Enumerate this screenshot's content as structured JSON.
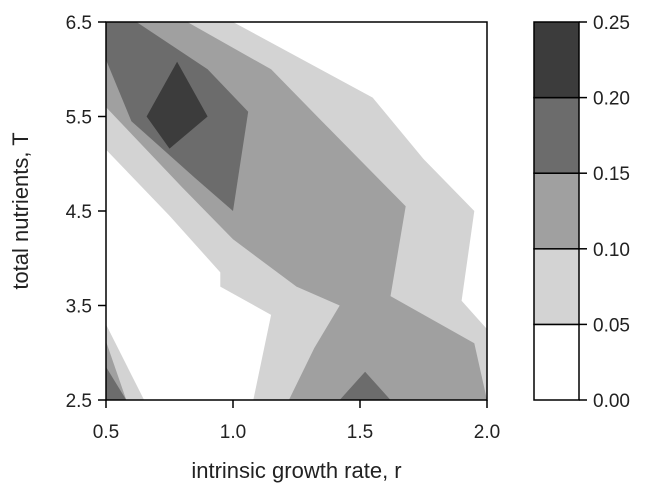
{
  "chart_data": {
    "type": "contour",
    "title": "",
    "xlabel": "intrinsic growth rate, r",
    "ylabel": "total nutrients, T",
    "xlim": [
      0.5,
      2.0
    ],
    "ylim": [
      2.5,
      6.5
    ],
    "x_ticks": [
      "0.5",
      "1.0",
      "1.5",
      "2.0"
    ],
    "y_ticks": [
      "2.5",
      "3.5",
      "4.5",
      "5.5",
      "6.5"
    ],
    "x_tick_values": [
      0.5,
      1.0,
      1.5,
      2.0
    ],
    "y_tick_values": [
      2.5,
      3.5,
      4.5,
      5.5,
      6.5
    ],
    "colorbar": {
      "levels": [
        0.0,
        0.05,
        0.1,
        0.15,
        0.2,
        0.25
      ],
      "tick_labels": [
        "0.00",
        "0.05",
        "0.10",
        "0.15",
        "0.20",
        "0.25"
      ],
      "colors": [
        "#ffffff",
        "#d3d3d3",
        "#a0a0a0",
        "#6c6c6c",
        "#3c3c3c"
      ]
    },
    "regions": [
      {
        "level_min": 0.0,
        "level_max": 0.05,
        "color": "#ffffff",
        "polygons": [
          [
            [
              0.5,
              2.5
            ],
            [
              2.0,
              2.5
            ],
            [
              2.0,
              6.5
            ],
            [
              0.5,
              6.5
            ]
          ]
        ]
      },
      {
        "level_min": 0.05,
        "level_max": 0.1,
        "color": "#d3d3d3",
        "polygons": [
          [
            [
              0.5,
              3.3
            ],
            [
              0.65,
              2.5
            ],
            [
              1.08,
              2.5
            ],
            [
              1.15,
              3.4
            ],
            [
              0.95,
              3.7
            ],
            [
              0.95,
              3.85
            ],
            [
              0.75,
              4.45
            ],
            [
              0.5,
              5.15
            ],
            [
              0.5,
              6.5
            ],
            [
              1.0,
              6.5
            ],
            [
              1.55,
              5.7
            ],
            [
              1.75,
              5.05
            ],
            [
              1.95,
              4.5
            ],
            [
              1.9,
              3.55
            ],
            [
              2.0,
              3.25
            ],
            [
              2.0,
              2.5
            ],
            [
              0.5,
              2.5
            ]
          ]
        ]
      },
      {
        "level_min": 0.1,
        "level_max": 0.15,
        "color": "#a0a0a0",
        "polygons": [
          [
            [
              0.5,
              3.12
            ],
            [
              0.5,
              2.5
            ],
            [
              0.58,
              2.5
            ]
          ],
          [
            [
              1.22,
              2.5
            ],
            [
              1.32,
              3.05
            ],
            [
              1.42,
              3.5
            ],
            [
              1.25,
              3.7
            ],
            [
              1.0,
              4.2
            ],
            [
              0.8,
              4.75
            ],
            [
              0.5,
              5.6
            ],
            [
              0.5,
              6.5
            ],
            [
              0.82,
              6.5
            ],
            [
              1.15,
              6.0
            ],
            [
              1.35,
              5.45
            ],
            [
              1.68,
              4.55
            ],
            [
              1.62,
              3.6
            ],
            [
              1.95,
              3.1
            ],
            [
              2.0,
              2.5
            ]
          ]
        ]
      },
      {
        "level_min": 0.15,
        "level_max": 0.2,
        "color": "#6c6c6c",
        "polygons": [
          [
            [
              0.5,
              2.85
            ],
            [
              0.5,
              2.5
            ],
            [
              0.58,
              2.5
            ]
          ],
          [
            [
              1.42,
              2.5
            ],
            [
              1.52,
              2.8
            ],
            [
              1.62,
              2.5
            ]
          ],
          [
            [
              0.5,
              6.1
            ],
            [
              0.5,
              6.5
            ],
            [
              0.62,
              6.5
            ],
            [
              0.9,
              6.0
            ],
            [
              1.06,
              5.55
            ],
            [
              1.0,
              4.5
            ],
            [
              0.85,
              4.85
            ],
            [
              0.6,
              5.45
            ]
          ]
        ]
      },
      {
        "level_min": 0.2,
        "level_max": 0.25,
        "color": "#3c3c3c",
        "polygons": [
          [
            [
              0.66,
              5.5
            ],
            [
              0.78,
              6.08
            ],
            [
              0.9,
              5.5
            ],
            [
              0.75,
              5.16
            ]
          ]
        ]
      }
    ]
  }
}
